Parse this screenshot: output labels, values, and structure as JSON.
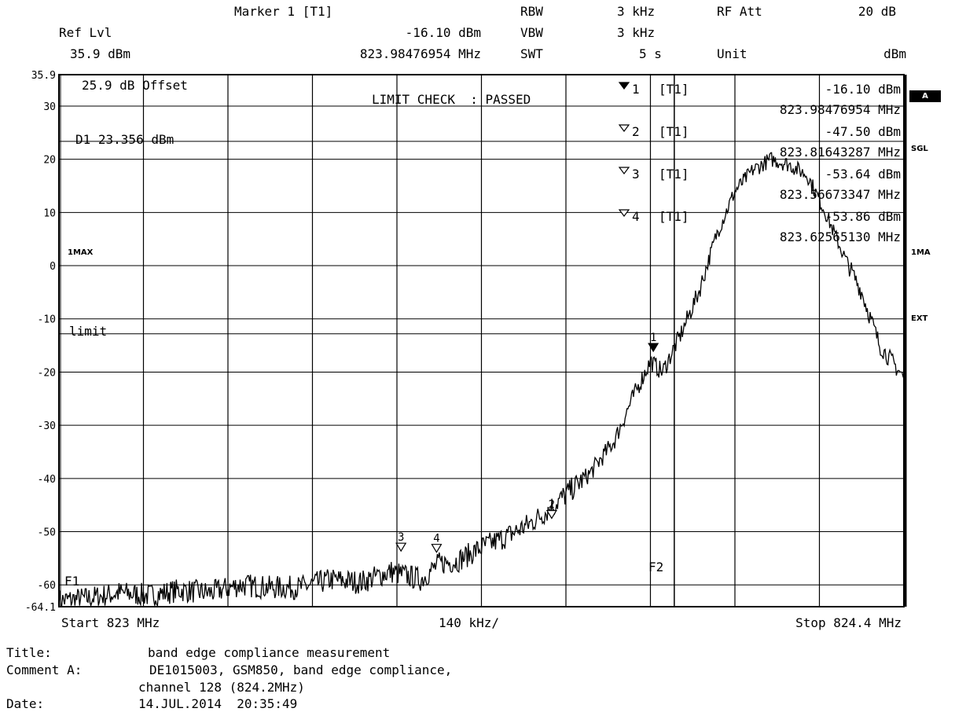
{
  "header": {
    "marker_label": "Marker 1 [T1]",
    "ref_lvl_label": "Ref Lvl",
    "ref_lvl_value": "35.9 dBm",
    "marker_level": "-16.10 dBm",
    "marker_freq": "823.98476954 MHz",
    "rbw_label": "RBW",
    "rbw_value": "3 kHz",
    "vbw_label": "VBW",
    "vbw_value": "3 kHz",
    "swt_label": "SWT",
    "swt_value": "5 s",
    "rf_att_label": "RF Att",
    "rf_att_value": "20 dB",
    "unit_label": "Unit",
    "unit_value": "dBm"
  },
  "side_labels": {
    "a_box": "A",
    "sgl": "SGL",
    "ima_right": "1MA",
    "ext": "EXT"
  },
  "plot_text": {
    "offset": "25.9 dB Offset",
    "limit_check": "LIMIT CHECK  : PASSED",
    "d1_line": "D1 23.356 dBm",
    "imax": "1MAX",
    "limit": "limit",
    "f1": "F1",
    "f2": "F2"
  },
  "marker_table": [
    {
      "id": "1",
      "trace": "[T1]",
      "level": "-16.10 dBm",
      "freq": "823.98476954 MHz",
      "filled": true
    },
    {
      "id": "2",
      "trace": "[T1]",
      "level": "-47.50 dBm",
      "freq": "823.81643287 MHz",
      "filled": false
    },
    {
      "id": "3",
      "trace": "[T1]",
      "level": "-53.64 dBm",
      "freq": "823.56673347 MHz",
      "filled": false
    },
    {
      "id": "4",
      "trace": "[T1]",
      "level": "-53.86 dBm",
      "freq": "823.62565130 MHz",
      "filled": false
    }
  ],
  "footer": {
    "start": "Start 823 MHz",
    "span_div": "140 kHz/",
    "stop": "Stop 824.4 MHz",
    "title_label": "Title:",
    "title_value": "band edge compliance measurement",
    "comment_label": "Comment A:",
    "comment_line1": "DE1015003, GSM850, band edge compliance,",
    "comment_line2": "channel 128 (824.2MHz)",
    "date_label": "Date:",
    "date_value": "14.JUL.2014  20:35:49"
  },
  "chart_data": {
    "type": "line",
    "xlabel": "",
    "ylabel": "",
    "xlim": [
      823.0,
      824.4
    ],
    "ylim": [
      -64.1,
      35.9
    ],
    "y_ticks": [
      30,
      20,
      10,
      0,
      -10,
      -20,
      -30,
      -40,
      -50,
      -60
    ],
    "y_tick_labels": [
      "35.9",
      "30",
      "20",
      "10",
      "0",
      "-10",
      "-20",
      "-30",
      "-40",
      "-50",
      "-60",
      "-64.1"
    ],
    "grid": true,
    "display_line_d1": 23.356,
    "limit_line": -12.8,
    "f1_mhz": 823.0,
    "f2_mhz": 824.0,
    "markers": [
      {
        "id": "1",
        "x": 823.98476954,
        "y": -16.1
      },
      {
        "id": "2",
        "x": 823.81643287,
        "y": -47.5
      },
      {
        "id": "3",
        "x": 823.56673347,
        "y": -53.64
      },
      {
        "id": "4",
        "x": 823.6256513,
        "y": -53.86
      }
    ],
    "series": [
      {
        "x": [
          823.0,
          823.05,
          823.1,
          823.15,
          823.2,
          823.25,
          823.3,
          823.35,
          823.4,
          823.45,
          823.5,
          823.55,
          823.6,
          823.63,
          823.66,
          823.7,
          823.74,
          823.78,
          823.81,
          823.84,
          823.88,
          823.92,
          823.95,
          823.98,
          824.0,
          824.03,
          824.06,
          824.09,
          824.12,
          824.15,
          824.18,
          824.21,
          824.24,
          824.27,
          824.3,
          824.33,
          824.36,
          824.4
        ],
        "y": [
          -63.0,
          -62.5,
          -61.5,
          -62.0,
          -61.0,
          -61.5,
          -60.0,
          -60.5,
          -60.5,
          -59.0,
          -59.5,
          -57.5,
          -59.0,
          -56.0,
          -55.5,
          -53.0,
          -51.0,
          -48.5,
          -46.0,
          -43.0,
          -39.0,
          -33.0,
          -25.0,
          -18.0,
          -20.0,
          -13.0,
          -5.0,
          6.0,
          14.0,
          18.0,
          20.0,
          19.0,
          17.0,
          10.0,
          2.0,
          -5.0,
          -15.0,
          -21.0
        ]
      }
    ]
  }
}
